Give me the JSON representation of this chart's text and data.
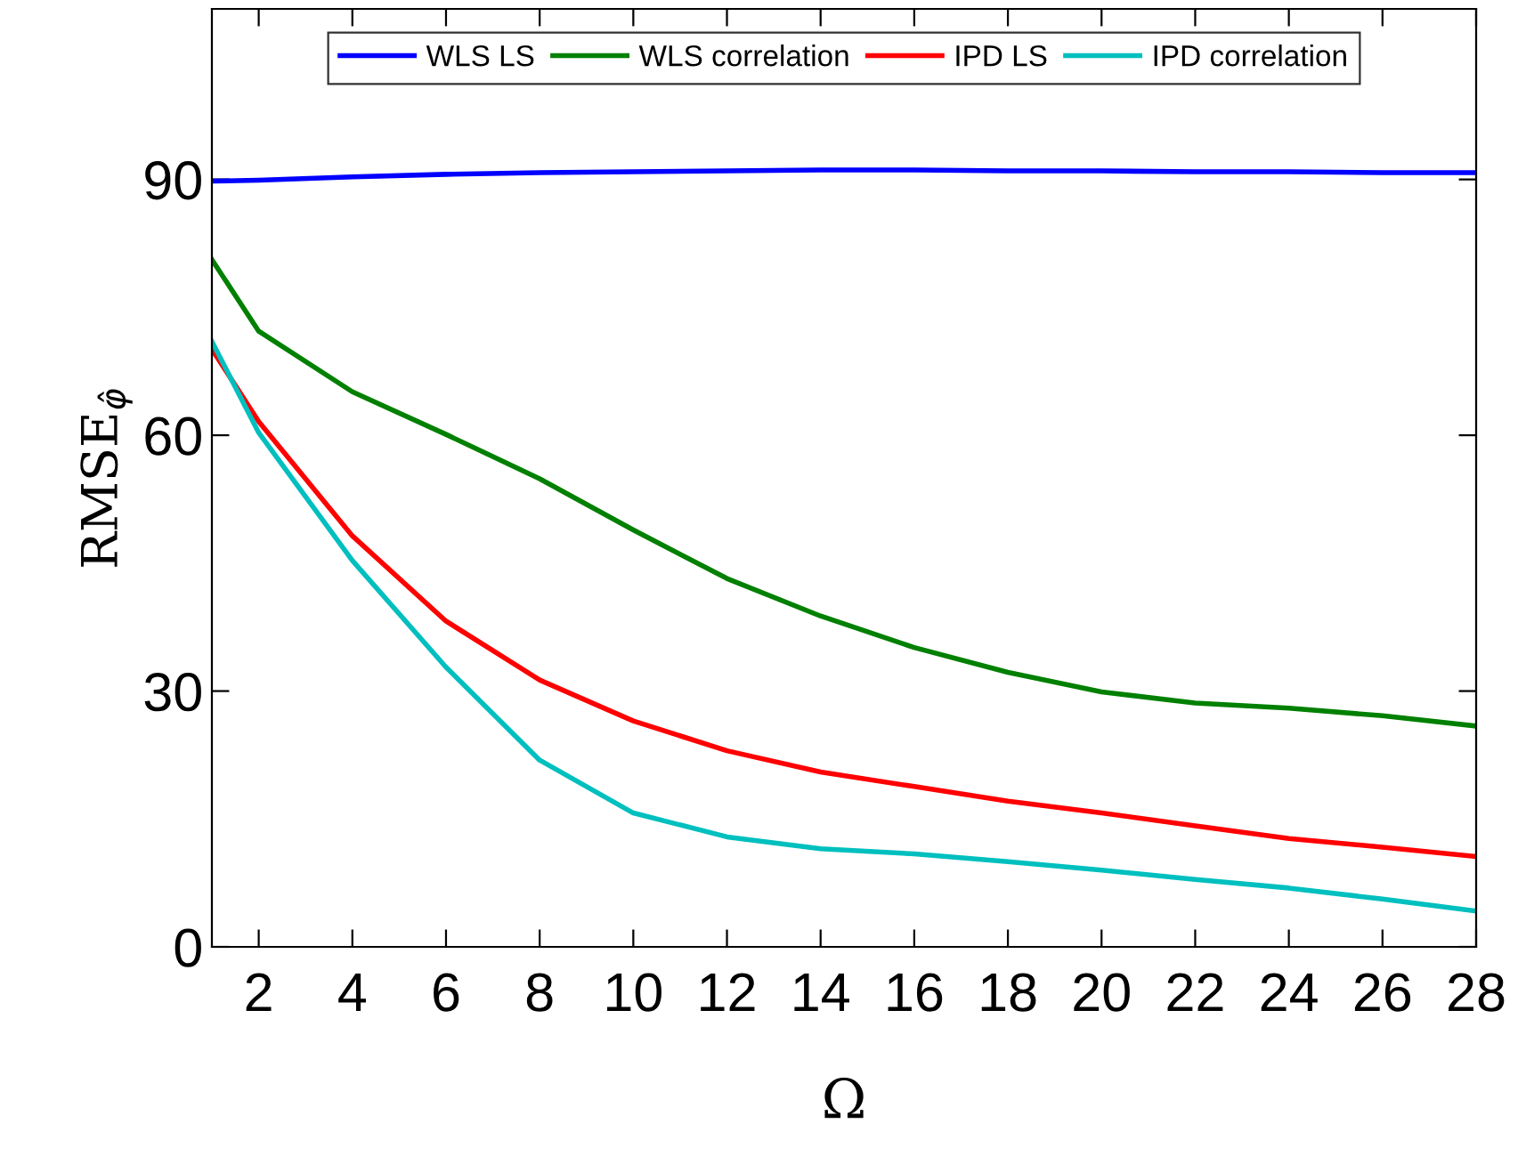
{
  "chart_data": {
    "type": "line",
    "xlabel": "Ω",
    "ylabel": "RMSE$_{φ̂}$",
    "x": [
      1,
      2,
      4,
      6,
      8,
      10,
      12,
      14,
      16,
      18,
      20,
      22,
      24,
      26,
      28
    ],
    "series": [
      {
        "name": "WLS LS",
        "color": "#0000ff",
        "values": [
          89.8,
          89.9,
          90.3,
          90.6,
          90.8,
          90.9,
          91.0,
          91.1,
          91.1,
          91.0,
          91.0,
          90.9,
          90.9,
          90.8,
          90.8
        ]
      },
      {
        "name": "WLS correlation",
        "color": "#008000",
        "values": [
          80.6,
          72.2,
          65.1,
          60.1,
          54.9,
          48.9,
          43.2,
          38.8,
          35.1,
          32.2,
          29.9,
          28.6,
          28.0,
          27.1,
          25.9
        ]
      },
      {
        "name": "IPD LS",
        "color": "#ff0000",
        "values": [
          70.1,
          61.6,
          48.2,
          38.2,
          31.3,
          26.5,
          23.0,
          20.5,
          18.8,
          17.1,
          15.7,
          14.2,
          12.7,
          11.7,
          10.6
        ]
      },
      {
        "name": "IPD correlation",
        "color": "#00bfbf",
        "values": [
          71.0,
          60.3,
          45.3,
          32.8,
          21.9,
          15.7,
          12.9,
          11.5,
          10.9,
          10.0,
          9.0,
          7.9,
          6.9,
          5.6,
          4.2
        ]
      }
    ],
    "xlim": [
      1,
      28
    ],
    "xticks": [
      2,
      4,
      6,
      8,
      10,
      12,
      14,
      16,
      18,
      20,
      22,
      24,
      26,
      28
    ],
    "ylim": [
      0,
      110
    ],
    "yticks": [
      0,
      30,
      60,
      90
    ],
    "grid": false,
    "legend": "top",
    "marker": "none",
    "line_style": "solid"
  }
}
